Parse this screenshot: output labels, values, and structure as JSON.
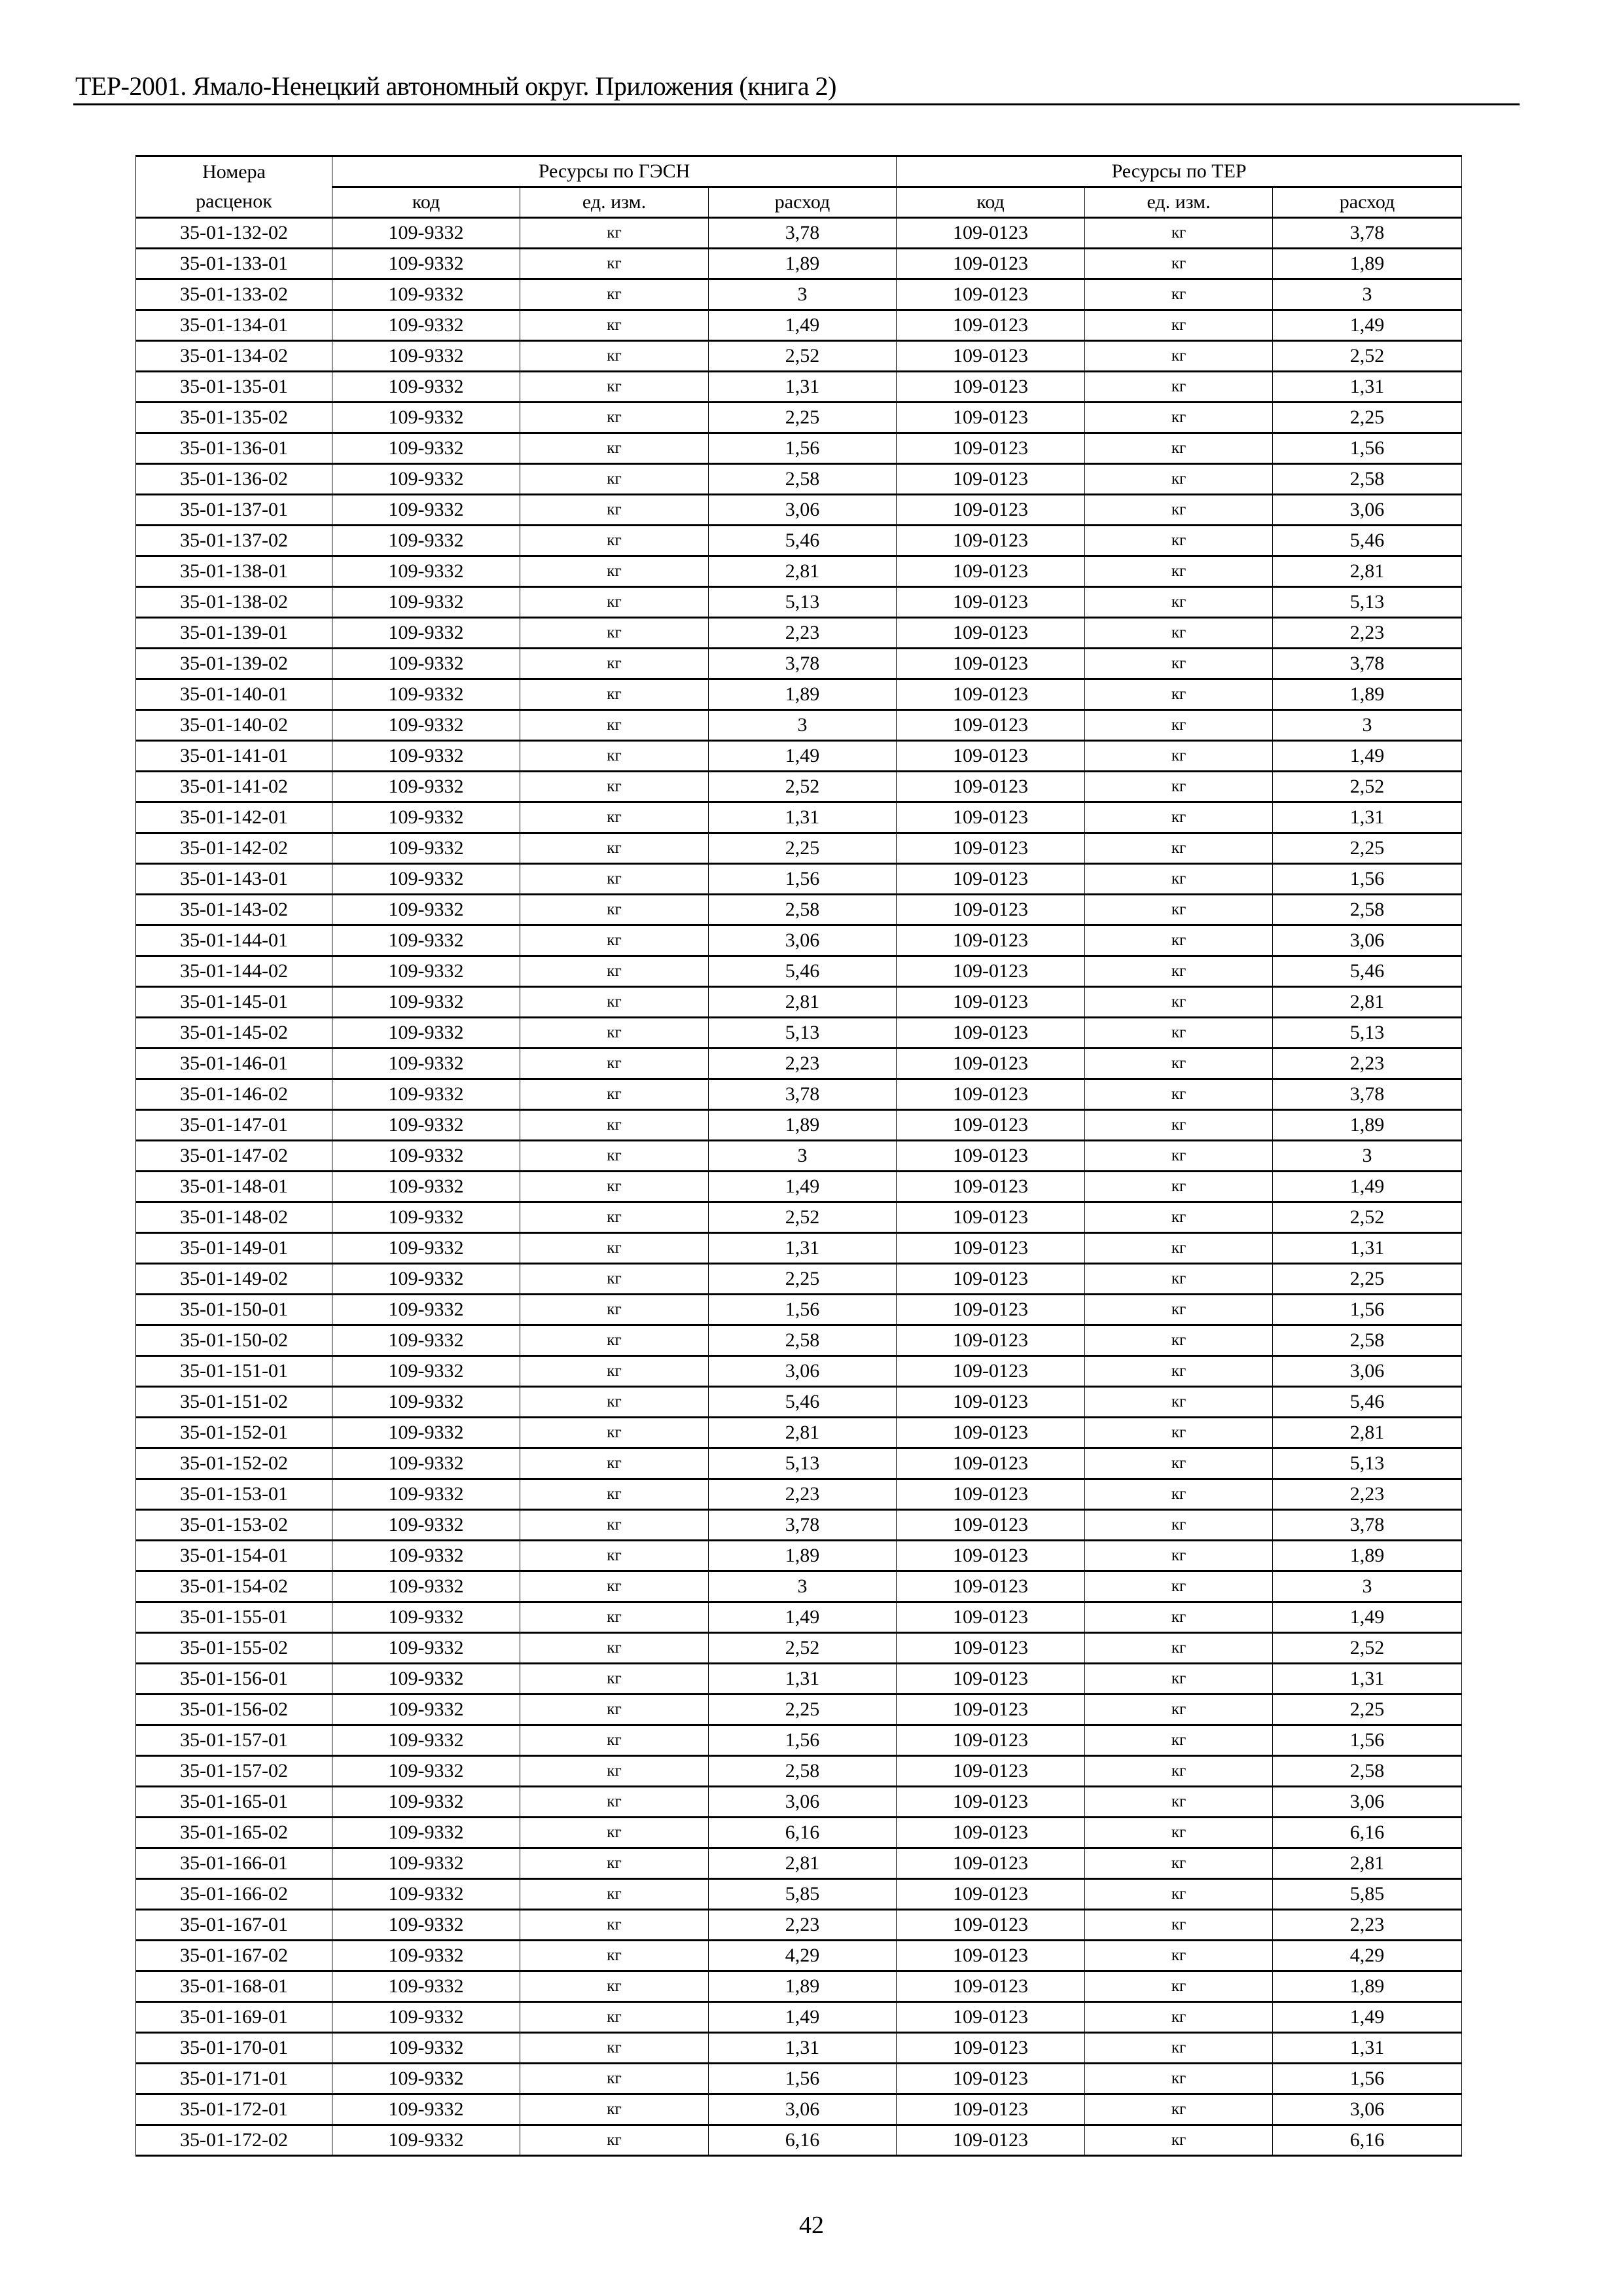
{
  "header": {
    "title": "ТЕР-2001. Ямало-Ненецкий автономный округ. Приложения (книга 2)"
  },
  "table": {
    "col_number_line1": "Номера",
    "col_number_line2": "расценок",
    "group_gesn": "Ресурсы по ГЭСН",
    "group_ter": "Ресурсы по ТЕР",
    "sub_code": "код",
    "sub_unit": "ед. изм.",
    "sub_amount": "расход",
    "gesn_code": "109-9332",
    "ter_code": "109-0123",
    "unit": "кг",
    "rows": [
      [
        "35-01-132-02",
        "3,78"
      ],
      [
        "35-01-133-01",
        "1,89"
      ],
      [
        "35-01-133-02",
        "3"
      ],
      [
        "35-01-134-01",
        "1,49"
      ],
      [
        "35-01-134-02",
        "2,52"
      ],
      [
        "35-01-135-01",
        "1,31"
      ],
      [
        "35-01-135-02",
        "2,25"
      ],
      [
        "35-01-136-01",
        "1,56"
      ],
      [
        "35-01-136-02",
        "2,58"
      ],
      [
        "35-01-137-01",
        "3,06"
      ],
      [
        "35-01-137-02",
        "5,46"
      ],
      [
        "35-01-138-01",
        "2,81"
      ],
      [
        "35-01-138-02",
        "5,13"
      ],
      [
        "35-01-139-01",
        "2,23"
      ],
      [
        "35-01-139-02",
        "3,78"
      ],
      [
        "35-01-140-01",
        "1,89"
      ],
      [
        "35-01-140-02",
        "3"
      ],
      [
        "35-01-141-01",
        "1,49"
      ],
      [
        "35-01-141-02",
        "2,52"
      ],
      [
        "35-01-142-01",
        "1,31"
      ],
      [
        "35-01-142-02",
        "2,25"
      ],
      [
        "35-01-143-01",
        "1,56"
      ],
      [
        "35-01-143-02",
        "2,58"
      ],
      [
        "35-01-144-01",
        "3,06"
      ],
      [
        "35-01-144-02",
        "5,46"
      ],
      [
        "35-01-145-01",
        "2,81"
      ],
      [
        "35-01-145-02",
        "5,13"
      ],
      [
        "35-01-146-01",
        "2,23"
      ],
      [
        "35-01-146-02",
        "3,78"
      ],
      [
        "35-01-147-01",
        "1,89"
      ],
      [
        "35-01-147-02",
        "3"
      ],
      [
        "35-01-148-01",
        "1,49"
      ],
      [
        "35-01-148-02",
        "2,52"
      ],
      [
        "35-01-149-01",
        "1,31"
      ],
      [
        "35-01-149-02",
        "2,25"
      ],
      [
        "35-01-150-01",
        "1,56"
      ],
      [
        "35-01-150-02",
        "2,58"
      ],
      [
        "35-01-151-01",
        "3,06"
      ],
      [
        "35-01-151-02",
        "5,46"
      ],
      [
        "35-01-152-01",
        "2,81"
      ],
      [
        "35-01-152-02",
        "5,13"
      ],
      [
        "35-01-153-01",
        "2,23"
      ],
      [
        "35-01-153-02",
        "3,78"
      ],
      [
        "35-01-154-01",
        "1,89"
      ],
      [
        "35-01-154-02",
        "3"
      ],
      [
        "35-01-155-01",
        "1,49"
      ],
      [
        "35-01-155-02",
        "2,52"
      ],
      [
        "35-01-156-01",
        "1,31"
      ],
      [
        "35-01-156-02",
        "2,25"
      ],
      [
        "35-01-157-01",
        "1,56"
      ],
      [
        "35-01-157-02",
        "2,58"
      ],
      [
        "35-01-165-01",
        "3,06"
      ],
      [
        "35-01-165-02",
        "6,16"
      ],
      [
        "35-01-166-01",
        "2,81"
      ],
      [
        "35-01-166-02",
        "5,85"
      ],
      [
        "35-01-167-01",
        "2,23"
      ],
      [
        "35-01-167-02",
        "4,29"
      ],
      [
        "35-01-168-01",
        "1,89"
      ],
      [
        "35-01-169-01",
        "1,49"
      ],
      [
        "35-01-170-01",
        "1,31"
      ],
      [
        "35-01-171-01",
        "1,56"
      ],
      [
        "35-01-172-01",
        "3,06"
      ],
      [
        "35-01-172-02",
        "6,16"
      ]
    ]
  },
  "footer": {
    "page_number": "42"
  }
}
